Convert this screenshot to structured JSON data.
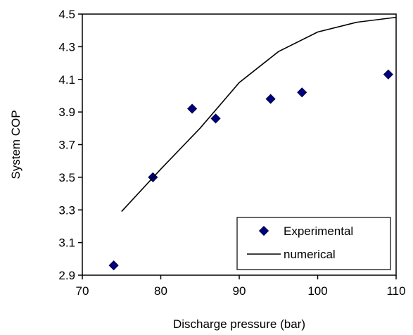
{
  "chart_data": {
    "type": "scatter",
    "xlabel": "Discharge pressure (bar)",
    "ylabel": "System COP",
    "xlim": [
      70,
      110
    ],
    "ylim": [
      2.9,
      4.5
    ],
    "xticks": [
      "70",
      "80",
      "90",
      "100",
      "110"
    ],
    "yticks": [
      "2.9",
      "3.1",
      "3.3",
      "3.5",
      "3.7",
      "3.9",
      "4.1",
      "4.3",
      "4.5"
    ],
    "grid": false,
    "legend_position": "bottom-right",
    "series": [
      {
        "name": "Experimental",
        "kind": "scatter",
        "marker": "diamond",
        "color": "#000080",
        "x": [
          74,
          79,
          84,
          87,
          94,
          98,
          109
        ],
        "y": [
          2.96,
          3.5,
          3.92,
          3.86,
          3.98,
          4.02,
          4.13
        ]
      },
      {
        "name": "numerical",
        "kind": "line",
        "color": "#000000",
        "x": [
          75,
          80,
          85,
          90,
          95,
          100,
          105,
          110
        ],
        "y": [
          3.29,
          3.55,
          3.8,
          4.08,
          4.27,
          4.39,
          4.45,
          4.48
        ]
      }
    ]
  }
}
